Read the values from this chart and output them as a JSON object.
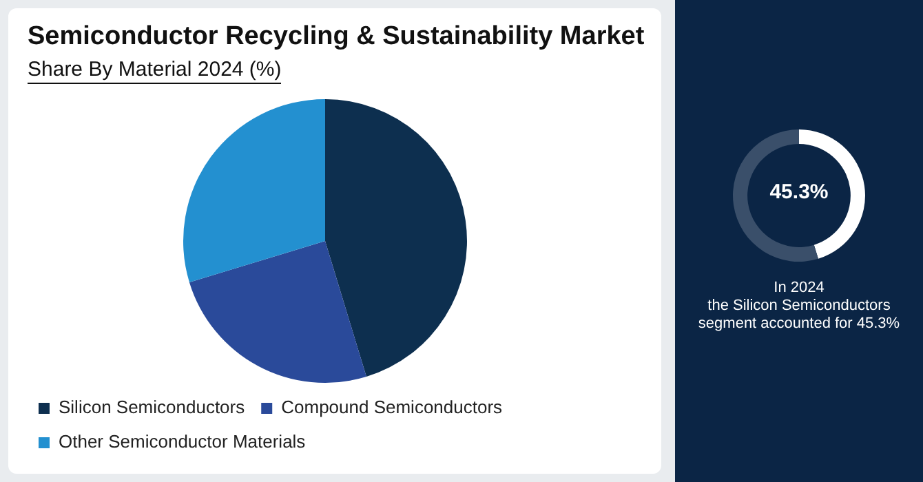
{
  "chart_data": [
    {
      "type": "pie",
      "title": "Semiconductor Recycling & Sustainability Market",
      "subtitle": "Share By Material 2024 (%)",
      "categories": [
        "Silicon Semiconductors",
        "Compound Semiconductors",
        "Other Semiconductor Materials"
      ],
      "values": [
        45.3,
        25,
        29.7
      ],
      "colors": [
        "#0d2f4f",
        "#2a4a9a",
        "#2390d0"
      ],
      "legend": "bottom left"
    },
    {
      "type": "donut",
      "categories": [
        null,
        null
      ],
      "values": [
        45.3,
        54.7
      ],
      "colors": [
        "#ffffff",
        "#3a4f6a"
      ],
      "annotations": [
        "45.3%",
        "In 2024\nthe Silicon Semiconductors\nsegment accounted for 45.3%"
      ]
    }
  ]
}
